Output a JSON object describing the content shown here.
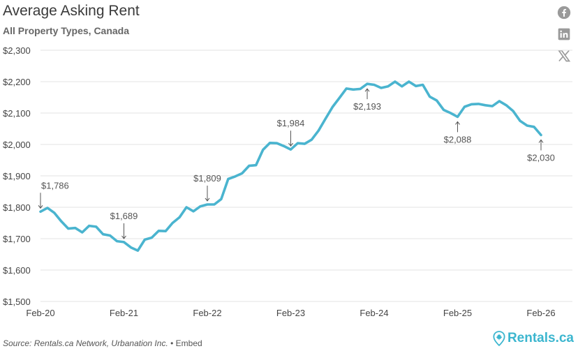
{
  "header": {
    "title": "Average Asking Rent",
    "subtitle": "All Property Types, Canada"
  },
  "social": {
    "icons": [
      "facebook-icon",
      "linkedin-icon",
      "x-icon"
    ]
  },
  "footer": {
    "source": "Source: Rentals.ca Network, Urbanation Inc.",
    "separator": " • ",
    "embed": "Embed",
    "brand": "Rentals.ca"
  },
  "colors": {
    "line": "#4ab4cf",
    "grid": "#e3e3e3",
    "brand": "#3cb6cf"
  },
  "chart_data": {
    "type": "line",
    "title": "Average Asking Rent",
    "subtitle": "All Property Types, Canada",
    "xlabel": "",
    "ylabel": "",
    "grid": true,
    "ylim": [
      1500,
      2300
    ],
    "yticks": [
      1500,
      1600,
      1700,
      1800,
      1900,
      2000,
      2100,
      2200,
      2300
    ],
    "ytick_labels": [
      "$1,500",
      "$1,600",
      "$1,700",
      "$1,800",
      "$1,900",
      "$2,000",
      "$2,100",
      "$2,200",
      "$2,300"
    ],
    "xtick_labels": [
      "Feb-20",
      "Feb-21",
      "Feb-22",
      "Feb-23",
      "Feb-24",
      "Feb-25",
      "Feb-26"
    ],
    "series": [
      {
        "values": [
          1786,
          1798,
          1782,
          1755,
          1732,
          1734,
          1720,
          1741,
          1738,
          1714,
          1710,
          1692,
          1689,
          1672,
          1662,
          1697,
          1703,
          1725,
          1724,
          1750,
          1768,
          1800,
          1787,
          1803,
          1809,
          1809,
          1826,
          1890,
          1898,
          1908,
          1932,
          1934,
          1983,
          2005,
          2004,
          1995,
          1984,
          2004,
          2002,
          2015,
          2044,
          2082,
          2119,
          2148,
          2178,
          2175,
          2177,
          2193,
          2190,
          2180,
          2185,
          2200,
          2185,
          2200,
          2186,
          2190,
          2152,
          2140,
          2110,
          2100,
          2088,
          2120,
          2128,
          2129,
          2125,
          2122,
          2138,
          2125,
          2106,
          2075,
          2060,
          2056,
          2030
        ]
      }
    ],
    "annotations": [
      {
        "label": "$1,786",
        "index": 0,
        "direction": "down"
      },
      {
        "label": "$1,689",
        "index": 12,
        "direction": "down"
      },
      {
        "label": "$1,809",
        "index": 24,
        "direction": "down"
      },
      {
        "label": "$1,984",
        "index": 36,
        "direction": "down"
      },
      {
        "label": "$2,193",
        "index": 47,
        "direction": "up"
      },
      {
        "label": "$2,088",
        "index": 60,
        "direction": "up"
      },
      {
        "label": "$2,030",
        "index": 72,
        "direction": "up"
      }
    ]
  }
}
